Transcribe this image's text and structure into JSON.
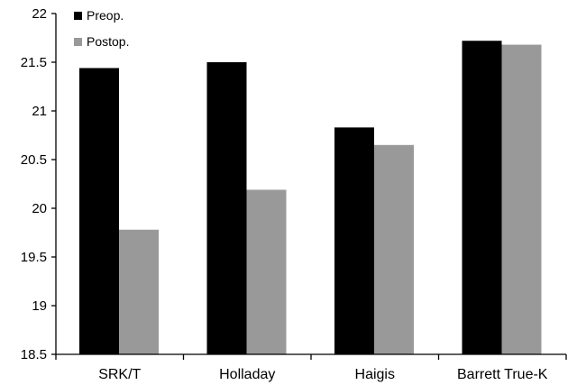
{
  "chart_data": {
    "type": "bar",
    "title": "",
    "xlabel": "",
    "ylabel": "",
    "categories": [
      "SRK/T",
      "Holladay",
      "Haigis",
      "Barrett True-K"
    ],
    "series": [
      {
        "name": "Preop.",
        "color": "#000000",
        "values": [
          21.44,
          21.5,
          20.83,
          21.72
        ]
      },
      {
        "name": "Postop.",
        "color": "#999999",
        "values": [
          19.78,
          20.19,
          20.65,
          21.68
        ]
      }
    ],
    "ylim": [
      18.5,
      22
    ],
    "yticks": [
      "18.5",
      "19",
      "19.5",
      "20",
      "20.5",
      "21",
      "21.5",
      "22"
    ],
    "grid": false,
    "legend_position": "top-left"
  }
}
